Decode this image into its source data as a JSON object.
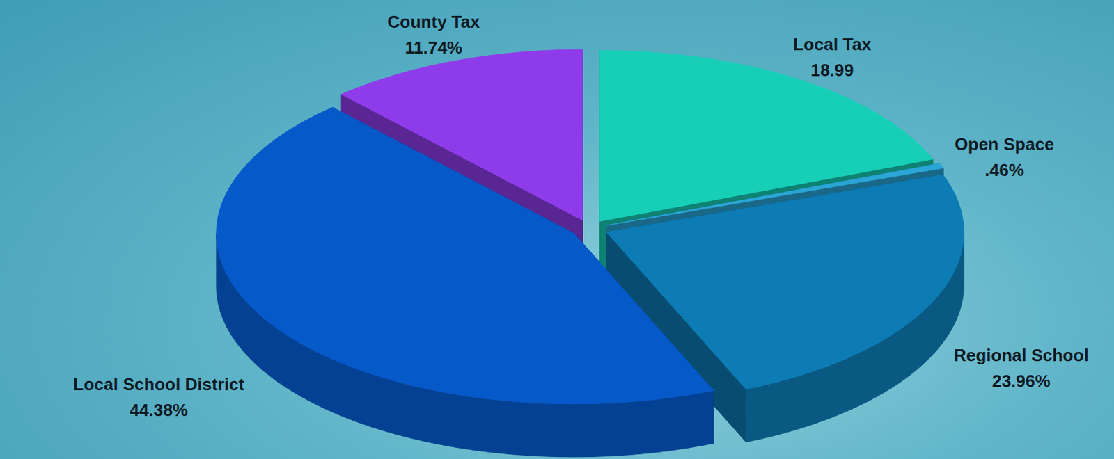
{
  "chart_data": {
    "type": "pie",
    "categories": [
      "Local Tax",
      "Open Space",
      "Regional School",
      "Local School District",
      "County Tax"
    ],
    "values": [
      18.99,
      0.46,
      23.96,
      44.38,
      11.74
    ],
    "value_labels": [
      "18.99",
      ".46%",
      "23.96%",
      "44.38%",
      "11.74%"
    ],
    "colors": [
      "#17cfb7",
      "#2aa6d6",
      "#0d7bb4",
      "#0659c9",
      "#8e3cea"
    ],
    "data_labels": true
  }
}
